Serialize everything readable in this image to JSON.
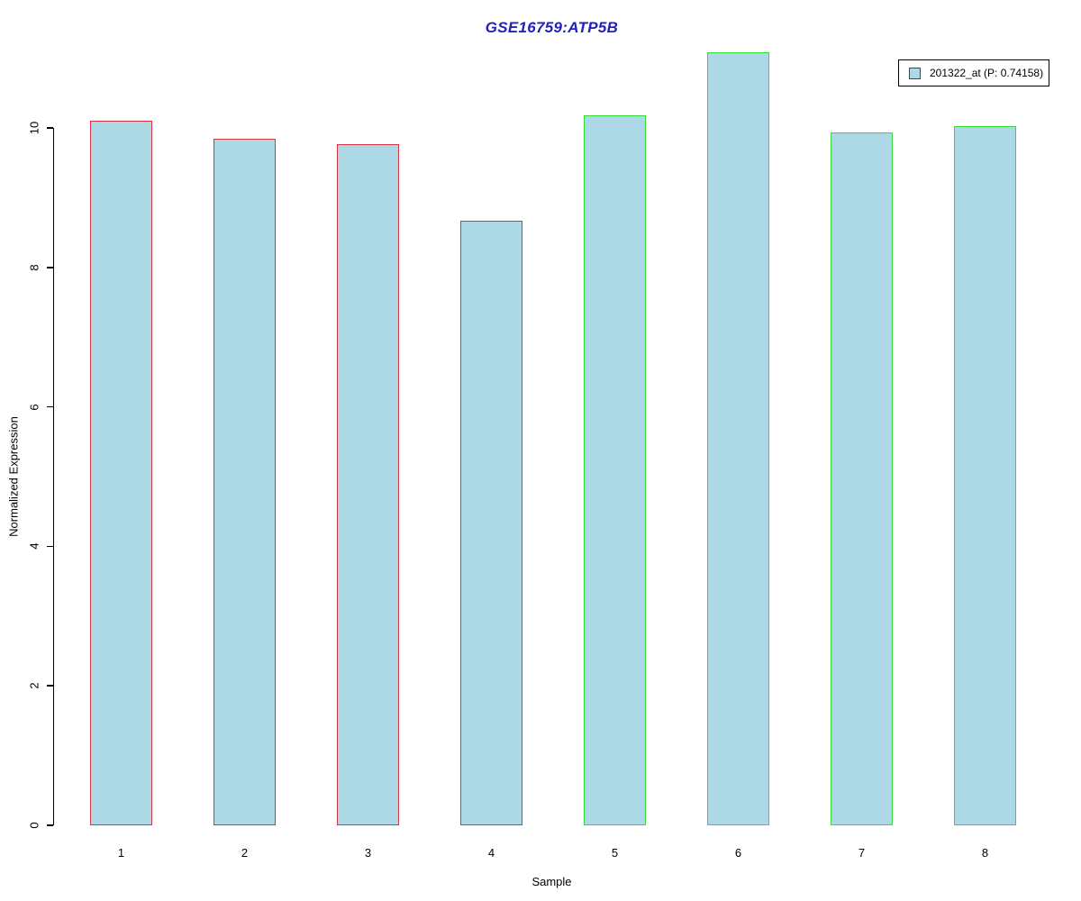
{
  "chart_data": {
    "type": "bar",
    "title": "GSE16759:ATP5B",
    "title_color": "#2222BB",
    "xlabel": "Sample",
    "ylabel": "Normalized Expression",
    "categories": [
      "1",
      "2",
      "3",
      "4",
      "5",
      "6",
      "7",
      "8"
    ],
    "values": [
      10.1,
      9.85,
      9.77,
      8.67,
      10.18,
      11.08,
      9.94,
      10.03
    ],
    "yticks": [
      0,
      2,
      4,
      6,
      8,
      10
    ],
    "ylim": [
      0,
      11.3
    ],
    "grid": false,
    "bar_fill": "#ADD8E6",
    "bar_border_colors": [
      "#D93240",
      "#D93240",
      "#D93240",
      "#D93240",
      "#35DB35",
      "#35DB35",
      "#35DB35",
      "#35DB35"
    ],
    "legend": {
      "label": "201322_at (P: 0.74158)",
      "swatch_fill": "#ADD8E6",
      "swatch_border": "#444444",
      "position": "top-right"
    }
  }
}
